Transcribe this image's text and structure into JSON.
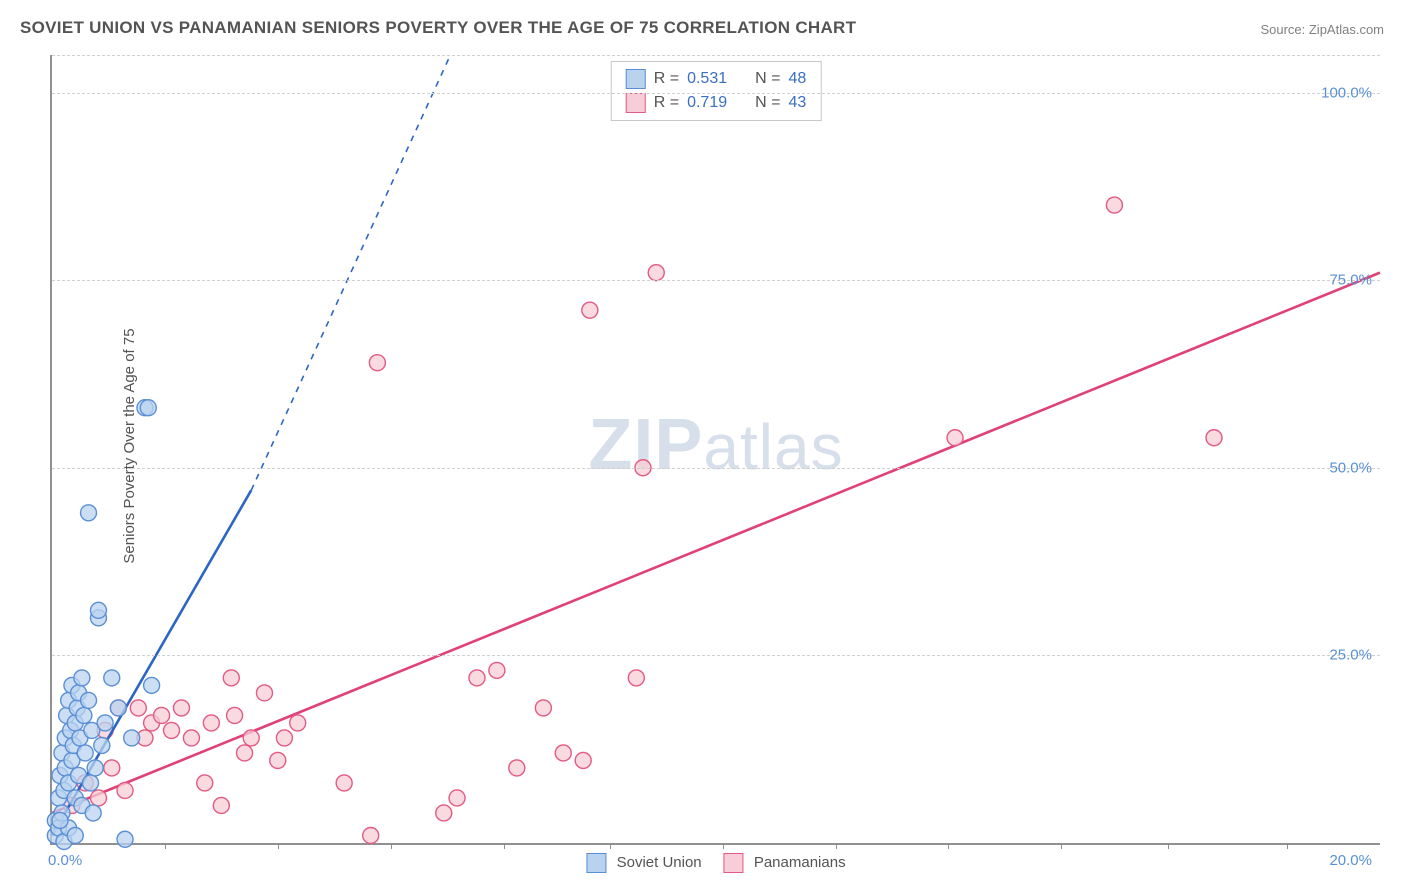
{
  "title": "SOVIET UNION VS PANAMANIAN SENIORS POVERTY OVER THE AGE OF 75 CORRELATION CHART",
  "source": "Source: ZipAtlas.com",
  "ylabel": "Seniors Poverty Over the Age of 75",
  "watermark_a": "ZIP",
  "watermark_b": "atlas",
  "chart": {
    "type": "scatter",
    "xlim": [
      0,
      20
    ],
    "ylim": [
      0,
      105
    ],
    "x_tick_positions": [
      1.7,
      3.4,
      5.1,
      6.8,
      8.4,
      10.1,
      11.8,
      13.5,
      15.2,
      16.8,
      18.6
    ],
    "y_gridlines": [
      25,
      50,
      75,
      100,
      105
    ],
    "y_tick_labels": {
      "25": "25.0%",
      "50": "50.0%",
      "75": "75.0%",
      "100": "100.0%"
    },
    "x_origin_label": "0.0%",
    "x_end_label": "20.0%",
    "background_color": "#ffffff",
    "grid_color": "#d0d0d0",
    "axis_color": "#909090",
    "tick_label_color": "#5a8fd6",
    "title_color": "#545454",
    "marker_radius": 8,
    "marker_stroke_width": 1.4,
    "line_width": 2.6
  },
  "series": {
    "soviet": {
      "label": "Soviet Union",
      "R": "0.531",
      "N": "48",
      "marker_fill": "#b9d3ef",
      "marker_stroke": "#5a8fd6",
      "line_color": "#2b66c4",
      "points": [
        [
          0.05,
          1
        ],
        [
          0.05,
          3
        ],
        [
          0.1,
          2
        ],
        [
          0.1,
          6
        ],
        [
          0.12,
          9
        ],
        [
          0.15,
          4
        ],
        [
          0.15,
          12
        ],
        [
          0.18,
          7
        ],
        [
          0.2,
          14
        ],
        [
          0.2,
          10
        ],
        [
          0.22,
          17
        ],
        [
          0.25,
          8
        ],
        [
          0.25,
          19
        ],
        [
          0.28,
          15
        ],
        [
          0.3,
          11
        ],
        [
          0.3,
          21
        ],
        [
          0.32,
          13
        ],
        [
          0.35,
          16
        ],
        [
          0.35,
          6
        ],
        [
          0.38,
          18
        ],
        [
          0.4,
          9
        ],
        [
          0.4,
          20
        ],
        [
          0.42,
          14
        ],
        [
          0.45,
          22
        ],
        [
          0.45,
          5
        ],
        [
          0.18,
          0.2
        ],
        [
          0.48,
          17
        ],
        [
          0.5,
          12
        ],
        [
          0.55,
          19
        ],
        [
          0.58,
          8
        ],
        [
          0.6,
          15
        ],
        [
          0.65,
          10
        ],
        [
          0.7,
          30
        ],
        [
          0.7,
          31
        ],
        [
          0.75,
          13
        ],
        [
          0.8,
          16
        ],
        [
          0.9,
          22
        ],
        [
          1.0,
          18
        ],
        [
          1.1,
          0.5
        ],
        [
          1.2,
          14
        ],
        [
          0.55,
          44
        ],
        [
          1.4,
          58
        ],
        [
          1.45,
          58
        ],
        [
          1.5,
          21
        ],
        [
          0.25,
          2
        ],
        [
          0.12,
          3
        ],
        [
          0.62,
          4
        ],
        [
          0.35,
          1
        ]
      ],
      "trend": {
        "x1": 0,
        "y1": 1,
        "x2": 3.0,
        "y2": 47,
        "dash_x2": 6.0,
        "dash_y2": 105
      }
    },
    "panamanian": {
      "label": "Panamanians",
      "R": "0.719",
      "N": "43",
      "marker_fill": "#f7cdd7",
      "marker_stroke": "#e35a82",
      "line_color": "#e04177",
      "points": [
        [
          0.3,
          5
        ],
        [
          0.5,
          8
        ],
        [
          0.7,
          6
        ],
        [
          0.8,
          15
        ],
        [
          0.9,
          10
        ],
        [
          1.0,
          18
        ],
        [
          1.1,
          7
        ],
        [
          1.3,
          18
        ],
        [
          1.4,
          14
        ],
        [
          1.5,
          16
        ],
        [
          1.65,
          17
        ],
        [
          1.8,
          15
        ],
        [
          1.95,
          18
        ],
        [
          2.1,
          14
        ],
        [
          2.3,
          8
        ],
        [
          2.4,
          16
        ],
        [
          2.55,
          5
        ],
        [
          2.7,
          22
        ],
        [
          2.75,
          17
        ],
        [
          2.9,
          12
        ],
        [
          3.0,
          14
        ],
        [
          3.2,
          20
        ],
        [
          3.4,
          11
        ],
        [
          3.5,
          14
        ],
        [
          3.7,
          16
        ],
        [
          4.4,
          8
        ],
        [
          4.8,
          1
        ],
        [
          4.9,
          64
        ],
        [
          5.9,
          4
        ],
        [
          6.1,
          6
        ],
        [
          6.4,
          22
        ],
        [
          6.7,
          23
        ],
        [
          7.0,
          10
        ],
        [
          7.4,
          18
        ],
        [
          7.7,
          12
        ],
        [
          8.0,
          11
        ],
        [
          8.1,
          71
        ],
        [
          8.9,
          50
        ],
        [
          9.1,
          76
        ],
        [
          8.8,
          22
        ],
        [
          13.6,
          54
        ],
        [
          16.0,
          85
        ],
        [
          17.5,
          54
        ]
      ],
      "trend": {
        "x1": 0,
        "y1": 4,
        "x2": 20,
        "y2": 76
      }
    }
  },
  "legend_top": {
    "R_label": "R =",
    "N_label": "N ="
  }
}
